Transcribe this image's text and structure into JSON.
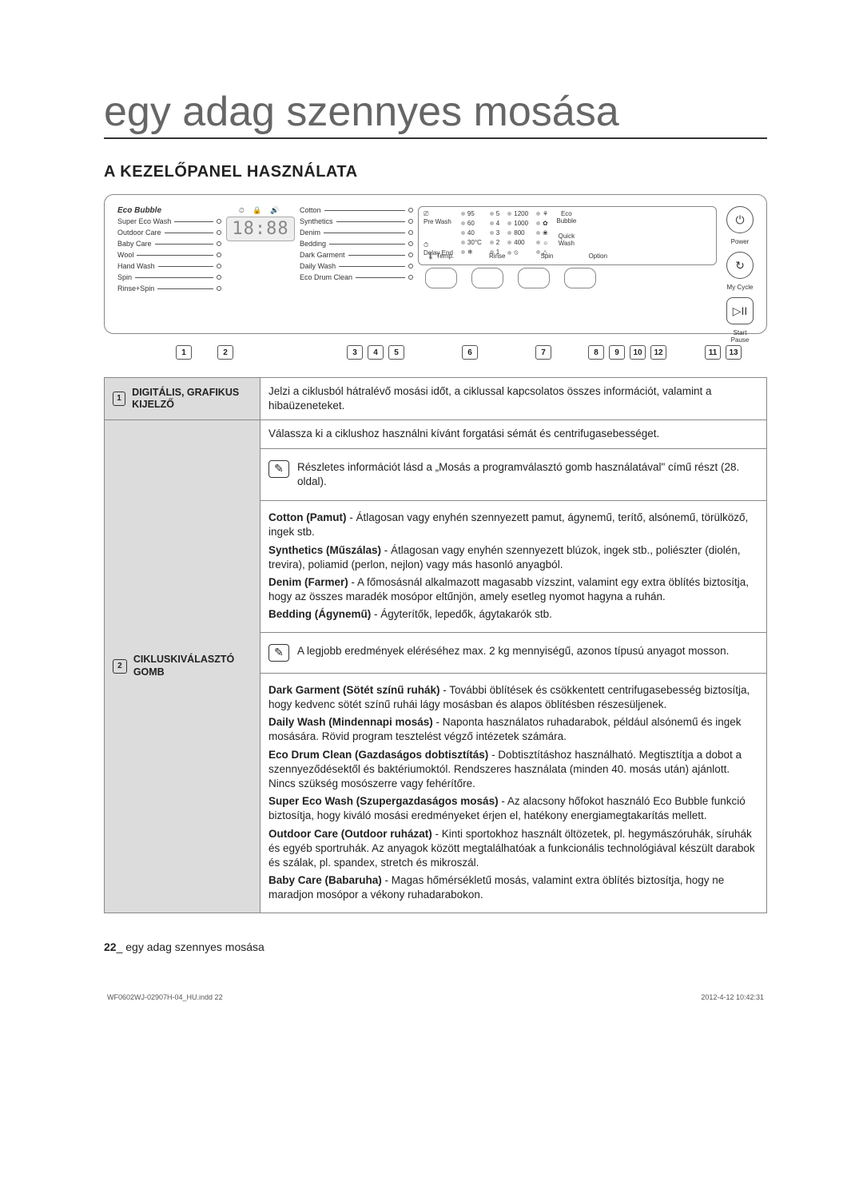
{
  "title": "egy adag szennyes mosása",
  "section_heading": "A KEZELŐPANEL HASZNÁLATA",
  "panel": {
    "eco_label": "Eco Bubble",
    "left_programs": [
      "Super Eco Wash",
      "Outdoor Care",
      "Baby Care",
      "Wool",
      "Hand Wash",
      "Spin",
      "Rinse+Spin"
    ],
    "right_programs": [
      "Cotton",
      "Synthetics",
      "Denim",
      "Bedding",
      "Dark Garment",
      "Daily Wash",
      "Eco Drum Clean"
    ],
    "display_digits": "18:88",
    "prewash": "Pre Wash",
    "delayend": "Delay End",
    "temps_hdr": "",
    "temps": [
      "95",
      "60",
      "40",
      "30°C",
      "❄"
    ],
    "rinses": [
      "5",
      "4",
      "3",
      "2",
      "1"
    ],
    "spins": [
      "1200",
      "1000",
      "800",
      "400",
      "⦸"
    ],
    "option_col": [
      "⚘",
      "✿",
      "❀",
      "☼",
      "△"
    ],
    "eco_bubble_btn": "Eco\nBubble",
    "quick_wash_btn": "Quick\nWash",
    "btn_temp": "Temp.",
    "btn_rinse": "Rinse",
    "btn_spin": "Spin",
    "btn_option": "Option",
    "power": "Power",
    "mycycle": "My Cycle",
    "startpause": "Start\nPause"
  },
  "callouts": [
    "1",
    "2",
    "3",
    "4",
    "5",
    "6",
    "7",
    "8",
    "9",
    "10",
    "12",
    "11",
    "13"
  ],
  "table": {
    "row1": {
      "num": "1",
      "label": "DIGITÁLIS, GRAFIKUS KIJELZŐ",
      "text": "Jelzi a ciklusból hátralévő mosási időt, a ciklussal kapcsolatos összes információt, valamint a hibaüzeneteket."
    },
    "row2": {
      "num": "2",
      "label": "CIKLUSKIVÁLASZTÓ GOMB",
      "intro": "Válassza ki a ciklushoz használni kívánt forgatási sémát és centrifugasebességet.",
      "note1": "Részletes információt lásd a „Mosás a programválasztó gomb használatával\" című részt (28. oldal).",
      "cotton_b": "Cotton (Pamut)",
      "cotton_t": " - Átlagosan vagy enyhén szennyezett pamut, ágynemű, terítő, alsónemű, törülköző, ingek stb.",
      "syn_b": "Synthetics (Műszálas)",
      "syn_t": " - Átlagosan vagy enyhén szennyezett blúzok, ingek stb., poliészter (diolén, trevira), poliamid (perlon, nejlon) vagy más hasonló anyagból.",
      "den_b": "Denim (Farmer)",
      "den_t": " - A főmosásnál alkalmazott magasabb vízszint, valamint egy extra öblítés biztosítja, hogy az összes maradék mosópor eltűnjön, amely esetleg nyomot hagyna a ruhán.",
      "bed_b": "Bedding (Ágynemű)",
      "bed_t": " - Ágyterítők, lepedők, ágytakarók stb.",
      "note2": "A legjobb eredmények eléréséhez max. 2 kg mennyiségű, azonos típusú anyagot mosson.",
      "dark_b": "Dark Garment (Sötét színű ruhák)",
      "dark_t": " -  További öblítések és csökkentett centrifugasebesség biztosítja, hogy kedvenc sötét színű ruhái lágy mosásban és alapos öblítésben részesüljenek.",
      "daily_b": "Daily Wash (Mindennapi mosás)",
      "daily_t": " - Naponta használatos ruhadarabok, például alsónemű és ingek mosására. Rövid program tesztelést végző intézetek számára.",
      "ecodrum_b": "Eco Drum Clean (Gazdaságos dobtisztítás)",
      "ecodrum_t": " - Dobtisztításhoz használható. Megtisztítja a dobot a szennyeződésektől és baktériumoktól. Rendszeres használata (minden 40. mosás után) ajánlott. Nincs szükség mosószerre vagy fehérítőre.",
      "super_b": "Super Eco Wash (Szupergazdaságos mosás)",
      "super_t": " - Az alacsony hőfokot használó Eco Bubble funkció biztosítja, hogy kiváló mosási eredményeket érjen el, hatékony energiamegtakarítás mellett.",
      "out_b": "Outdoor Care (Outdoor ruházat)",
      "out_t": " - Kinti sportokhoz használt öltözetek, pl. hegymászóruhák, síruhák és egyéb sportruhák. Az anyagok között megtalálhatóak a funkcionális technológiával készült darabok és szálak, pl. spandex, stretch és mikroszál.",
      "baby_b": "Baby Care (Babaruha)",
      "baby_t": " - Magas hőmérsékletű mosás, valamint extra öblítés biztosítja, hogy ne maradjon mosópor a vékony ruhadarabokon."
    }
  },
  "footer_page": "22",
  "footer_text": "_ egy adag szennyes mosása",
  "printfoot_left": "WF0602WJ-02907H-04_HU.indd   22",
  "printfoot_right": "2012-4-12   10:42:31"
}
